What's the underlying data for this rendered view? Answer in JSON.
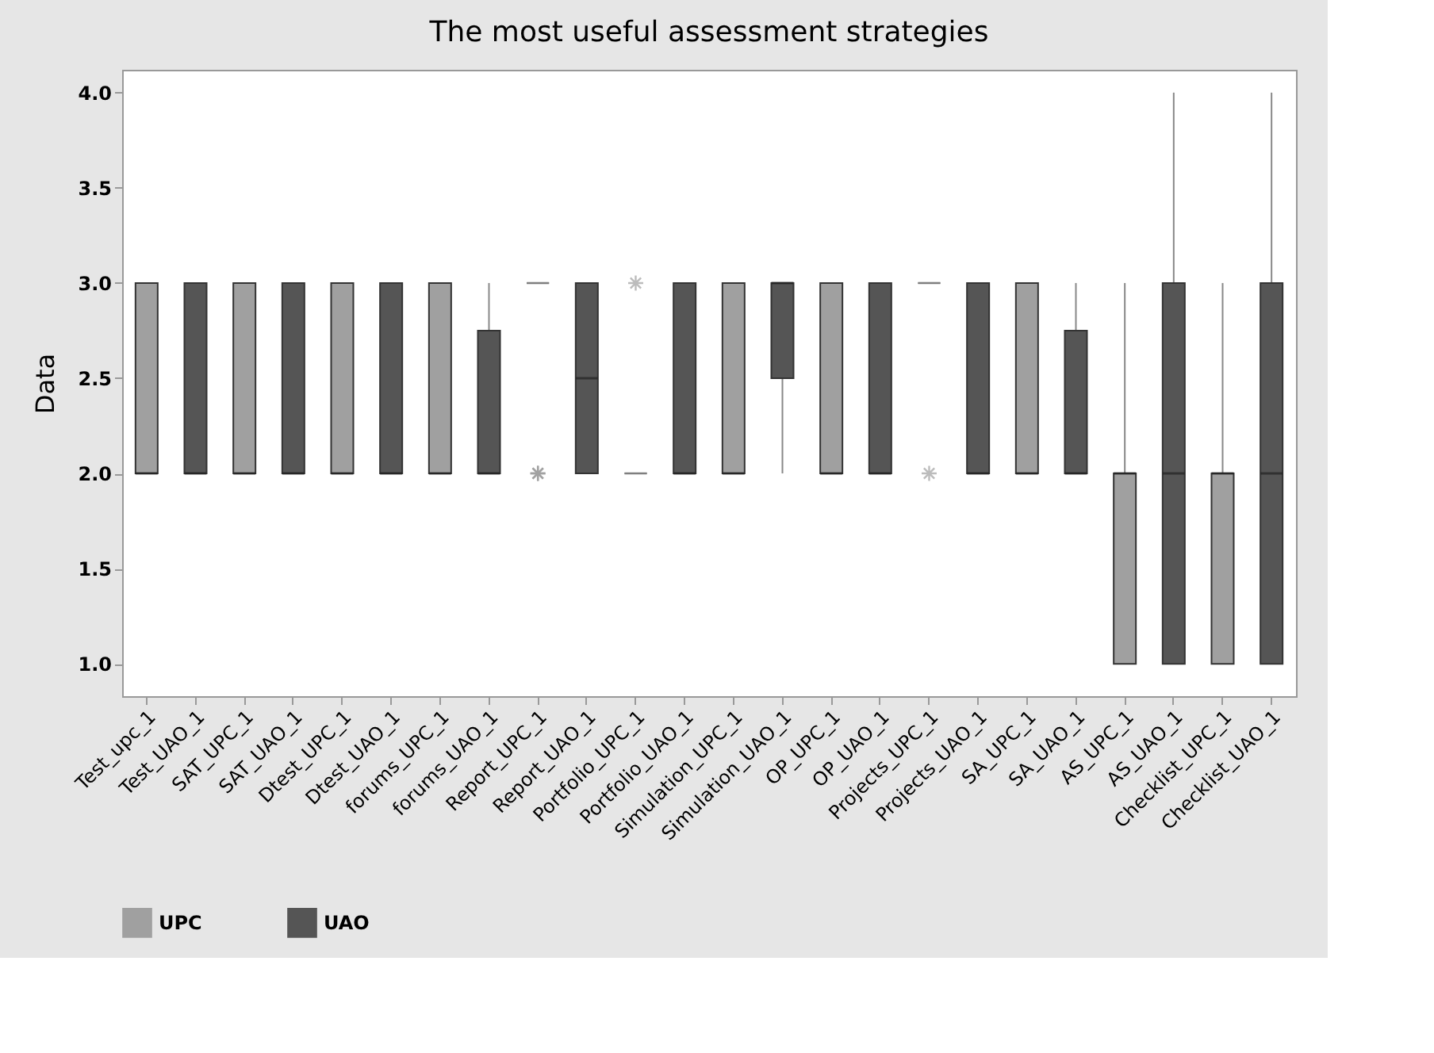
{
  "chart_data": {
    "type": "box",
    "title": "The most useful  assessment strategies",
    "ylabel": "Data",
    "categories": [
      "Test_upc_1",
      "Test_UAO_1",
      "SAT_UPC_1",
      "SAT_UAO_1",
      "Dtest_UPC_1",
      "Dtest_UAO_1",
      "forums_UPC_1",
      "forums_UAO_1",
      "Report_UPC_1",
      "Report_UAO_1",
      "Portfolio_UPC_1",
      "Portfolio_UAO_1",
      "Simulation_UPC_1",
      "Simulation_UAO_1",
      "OP_UPC_1",
      "OP_UAO_1",
      "Projects_UPC_1",
      "Projects_UAO_1",
      "SA_UPC_1",
      "SA_UAO_1",
      "AS_UPC_1",
      "AS_UAO_1",
      "Checklist_UPC_1",
      "Checklist_UAO_1"
    ],
    "ylim": [
      0.83,
      4.12
    ],
    "yticks": [
      {
        "value": 1,
        "label": "1.0"
      },
      {
        "value": 1.5,
        "label": "1.5"
      },
      {
        "value": 2,
        "label": "2.0"
      },
      {
        "value": 2.5,
        "label": "2.5"
      },
      {
        "value": 3,
        "label": "3.0"
      },
      {
        "value": 3.5,
        "label": "3.5"
      },
      {
        "value": 4,
        "label": "4.0"
      }
    ],
    "grid": false,
    "legend": "bottom",
    "marker": "star",
    "series": [
      {
        "name": "UPC",
        "color": "#a0a0a0",
        "boxes": [
          {
            "low": 2,
            "q1": 2,
            "median": 2,
            "q3": 3,
            "high": 3
          },
          null,
          {
            "low": 2,
            "q1": 2,
            "median": 2,
            "q3": 3,
            "high": 3
          },
          null,
          {
            "low": 2,
            "q1": 2,
            "median": 2,
            "q3": 3,
            "high": 3
          },
          null,
          {
            "low": 2,
            "q1": 2,
            "median": 2,
            "q3": 3,
            "high": 3
          },
          null,
          {
            "low": 3,
            "q1": 3,
            "median": 3,
            "q3": 3,
            "high": 3,
            "outliers": [
              2,
              2,
              2
            ]
          },
          null,
          {
            "low": 2,
            "q1": 2,
            "median": 2,
            "q3": 2,
            "high": 2,
            "outliers": [
              3
            ]
          },
          null,
          {
            "low": 2,
            "q1": 2,
            "median": 2,
            "q3": 3,
            "high": 3
          },
          null,
          {
            "low": 2,
            "q1": 2,
            "median": 2,
            "q3": 3,
            "high": 3
          },
          null,
          {
            "low": 3,
            "q1": 3,
            "median": 3,
            "q3": 3,
            "high": 3,
            "outliers": [
              2
            ]
          },
          null,
          {
            "low": 2,
            "q1": 2,
            "median": 2,
            "q3": 3,
            "high": 3
          },
          null,
          {
            "low": 1,
            "q1": 1,
            "median": 2,
            "q3": 2,
            "high": 3
          },
          null,
          {
            "low": 1,
            "q1": 1,
            "median": 2,
            "q3": 2,
            "high": 3
          },
          null
        ]
      },
      {
        "name": "UAO",
        "color": "#555555",
        "boxes": [
          null,
          {
            "low": 2,
            "q1": 2,
            "median": 2,
            "q3": 3,
            "high": 3
          },
          null,
          {
            "low": 2,
            "q1": 2,
            "median": 2,
            "q3": 3,
            "high": 3
          },
          null,
          {
            "low": 2,
            "q1": 2,
            "median": 2,
            "q3": 3,
            "high": 3
          },
          null,
          {
            "low": 2,
            "q1": 2,
            "median": 2,
            "q3": 2.75,
            "high": 3
          },
          null,
          {
            "low": 2,
            "q1": 2,
            "median": 2.5,
            "q3": 3,
            "high": 3
          },
          null,
          {
            "low": 2,
            "q1": 2,
            "median": 2,
            "q3": 3,
            "high": 3
          },
          null,
          {
            "low": 2,
            "q1": 2.5,
            "median": 3,
            "q3": 3,
            "high": 3
          },
          null,
          {
            "low": 2,
            "q1": 2,
            "median": 2,
            "q3": 3,
            "high": 3
          },
          null,
          {
            "low": 2,
            "q1": 2,
            "median": 2,
            "q3": 3,
            "high": 3
          },
          null,
          {
            "low": 2,
            "q1": 2,
            "median": 2,
            "q3": 2.75,
            "high": 3
          },
          null,
          {
            "low": 1,
            "q1": 1,
            "median": 2,
            "q3": 3,
            "high": 4
          },
          null,
          {
            "low": 1,
            "q1": 1,
            "median": 2,
            "q3": 3,
            "high": 4
          }
        ]
      }
    ]
  }
}
